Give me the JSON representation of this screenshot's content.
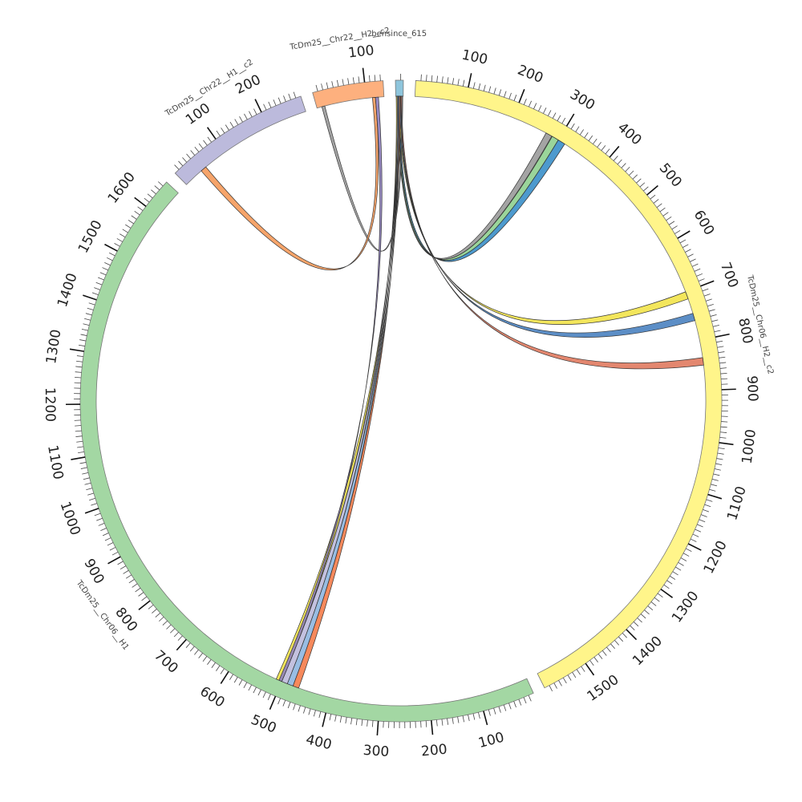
{
  "diagram": {
    "type": "circos",
    "gap_degrees": 2.2,
    "contigs": [
      {
        "name": "bensince_615",
        "label": "bensince_615",
        "length": 15,
        "color": "#8ec5dc"
      },
      {
        "name": "TcDm25_Chr06_H2_c2",
        "label": "TcDm25__Chr06__H2__c2",
        "length": 1590,
        "color": "#fff58a",
        "ticks": [
          "100",
          "200",
          "300",
          "400",
          "500",
          "600",
          "700",
          "800",
          "900",
          "1000",
          "1100",
          "1200",
          "1300",
          "1400",
          "1500"
        ]
      },
      {
        "name": "TcDm25_Chr06_H1",
        "label": "TcDm25__Chr06__H1",
        "length": 1660,
        "color": "#a3d7a3",
        "ticks": [
          "100",
          "200",
          "300",
          "400",
          "500",
          "600",
          "700",
          "800",
          "900",
          "1000",
          "1100",
          "1200",
          "1300",
          "1400",
          "1500",
          "1600"
        ]
      },
      {
        "name": "TcDm25_Chr22_H1_c2",
        "label": "TcDm25__Chr22__H1__c2",
        "length": 280,
        "color": "#bcbadc",
        "ticks": [
          "100",
          "200"
        ]
      },
      {
        "name": "TcDm25_Chr22_H2_c2",
        "label": "TcDm25__Chr22__H2__c2",
        "length": 135,
        "color": "#fdb07e",
        "ticks": [
          "100"
        ]
      }
    ],
    "links": [
      {
        "from": "bensince_615",
        "from_range": [
          2,
          4
        ],
        "to": "TcDm25_Chr06_H2_c2",
        "to_range": [
          272,
          285
        ],
        "color": "#9a9a9a"
      },
      {
        "from": "bensince_615",
        "from_range": [
          3,
          5
        ],
        "to": "TcDm25_Chr06_H2_c2",
        "to_range": [
          286,
          300
        ],
        "color": "#8fd08f"
      },
      {
        "from": "bensince_615",
        "from_range": [
          5,
          7
        ],
        "to": "TcDm25_Chr06_H2_c2",
        "to_range": [
          300,
          315
        ],
        "color": "#3a8fc9"
      },
      {
        "from": "bensince_615",
        "from_range": [
          6,
          8
        ],
        "to": "TcDm25_Chr06_H2_c2",
        "to_range": [
          700,
          715
        ],
        "color": "#f2e34a"
      },
      {
        "from": "bensince_615",
        "from_range": [
          8,
          10
        ],
        "to": "TcDm25_Chr06_H2_c2",
        "to_range": [
          745,
          760
        ],
        "color": "#4a82c0"
      },
      {
        "from": "bensince_615",
        "from_range": [
          10,
          12
        ],
        "to": "TcDm25_Chr06_H2_c2",
        "to_range": [
          835,
          850
        ],
        "color": "#e07a5f"
      },
      {
        "from": "bensince_615",
        "from_range": [
          1,
          3
        ],
        "to": "TcDm25_Chr06_H1",
        "to_range": [
          500,
          512
        ],
        "color": "#f2e34a"
      },
      {
        "from": "bensince_615",
        "from_range": [
          3,
          5
        ],
        "to": "TcDm25_Chr06_H1",
        "to_range": [
          488,
          500
        ],
        "color": "#bcbadc"
      },
      {
        "from": "bensince_615",
        "from_range": [
          5,
          7
        ],
        "to": "TcDm25_Chr06_H1",
        "to_range": [
          476,
          488
        ],
        "color": "#8eb6e0"
      },
      {
        "from": "bensince_615",
        "from_range": [
          7,
          9
        ],
        "to": "TcDm25_Chr06_H1",
        "to_range": [
          464,
          476
        ],
        "color": "#f57c4a"
      },
      {
        "from": "TcDm25_Chr22_H2_c2",
        "from_range": [
          10,
          16
        ],
        "to": "bensince_615",
        "to_range": [
          12,
          14
        ],
        "color": "#9a9a9a"
      },
      {
        "from": "TcDm25_Chr22_H1_c2",
        "from_range": [
          40,
          52
        ],
        "to": "TcDm25_Chr22_H2_c2",
        "to_range": [
          112,
          118
        ],
        "color": "#f59a5a"
      },
      {
        "from": "TcDm25_Chr22_H2_c2",
        "from_range": [
          118,
          124
        ],
        "to": "TcDm25_Chr06_H1",
        "to_range": [
          500,
          506
        ],
        "color": "#8e7fbf"
      }
    ]
  }
}
